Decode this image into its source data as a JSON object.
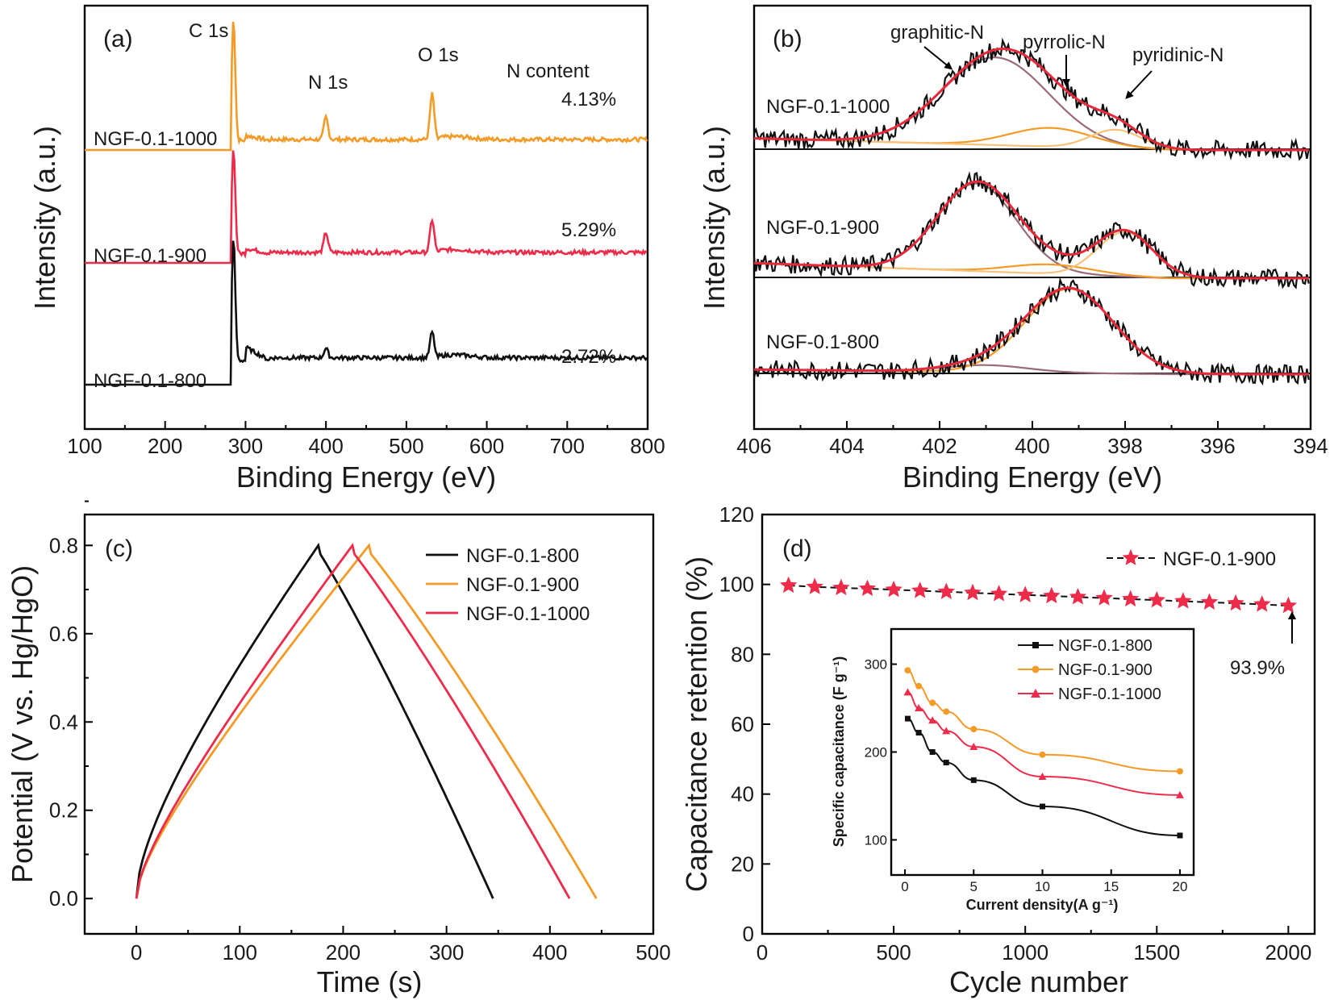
{
  "colors": {
    "black": "#111111",
    "orange": "#f39a27",
    "red": "#ee2c4a",
    "red_fit": "#e8293a",
    "brown_fit": "#9a6a77",
    "light_orange": "#f7c27a"
  },
  "chart_data": [
    {
      "id": "a",
      "panel_label": "(a)",
      "type": "line",
      "xlabel": "Binding Energy (eV)",
      "ylabel": "Intensity (a.u.)",
      "xlim": [
        100,
        800
      ],
      "x_ticks": [
        100,
        200,
        300,
        400,
        500,
        600,
        700,
        800
      ],
      "y_ticks_shown": false,
      "peak_labels": [
        {
          "text": "C 1s",
          "x": 285
        },
        {
          "text": "N 1s",
          "x": 400
        },
        {
          "text": "O 1s",
          "x": 532
        }
      ],
      "column_header": "N content",
      "series": [
        {
          "name": "NGF-0.1-1000",
          "color": "orange",
          "n_content": "4.13%",
          "baseline_before": 0.0,
          "baseline_after": 0.9,
          "peaks": [
            {
              "x": 285,
              "h": 10.4
            },
            {
              "x": 400,
              "h": 1.9
            },
            {
              "x": 532,
              "h": 3.9
            }
          ]
        },
        {
          "name": "NGF-0.1-900",
          "color": "red",
          "n_content": "5.29%",
          "baseline_before": 0.0,
          "baseline_after": 0.9,
          "peaks": [
            {
              "x": 285,
              "h": 9.0
            },
            {
              "x": 400,
              "h": 1.7
            },
            {
              "x": 532,
              "h": 2.8
            }
          ]
        },
        {
          "name": "NGF-0.1-800",
          "color": "black",
          "n_content": "2.72%",
          "baseline_before": 0.0,
          "baseline_after": 2.3,
          "peaks": [
            {
              "x": 285,
              "h": 10.4
            },
            {
              "x": 400,
              "h": 0.8
            },
            {
              "x": 532,
              "h": 2.2
            }
          ]
        }
      ]
    },
    {
      "id": "b",
      "panel_label": "(b)",
      "type": "line",
      "xlabel": "Binding Energy (eV)",
      "ylabel": "Intensity (a.u.)",
      "xlim": [
        406,
        394
      ],
      "x_ticks": [
        406,
        404,
        402,
        400,
        398,
        396,
        394
      ],
      "y_ticks_shown": false,
      "component_labels": [
        "graphitic-N",
        "pyrrolic-N",
        "pyridinic-N"
      ],
      "series": [
        {
          "name": "NGF-0.1-1000",
          "components": [
            {
              "label": "graphitic-N",
              "center": 400.8,
              "height": 7.5,
              "width": 1.15,
              "color": "brown_fit"
            },
            {
              "label": "pyrrolic-N",
              "center": 399.6,
              "height": 1.6,
              "width": 0.9,
              "color": "orange"
            },
            {
              "label": "pyridinic-N",
              "center": 398.2,
              "height": 1.6,
              "width": 0.55,
              "color": "light_orange"
            }
          ]
        },
        {
          "name": "NGF-0.1-900",
          "components": [
            {
              "label": "graphitic-N",
              "center": 401.2,
              "height": 7.5,
              "width": 0.85,
              "color": "brown_fit"
            },
            {
              "label": "pyrrolic-N",
              "center": 399.6,
              "height": 0.8,
              "width": 0.9,
              "color": "orange"
            },
            {
              "label": "pyridinic-N",
              "center": 398.0,
              "height": 3.8,
              "width": 0.6,
              "color": "light_orange"
            }
          ]
        },
        {
          "name": "NGF-0.1-800",
          "components": [
            {
              "label": "graphitic-N",
              "center": 401.0,
              "height": 0.6,
              "width": 0.9,
              "color": "brown_fit"
            },
            {
              "label": "pyrrolic-N",
              "center": 399.2,
              "height": 7.2,
              "width": 0.95,
              "color": "orange"
            }
          ]
        }
      ]
    },
    {
      "id": "c",
      "panel_label": "(c)",
      "type": "line",
      "xlabel": "Time (s)",
      "ylabel": "Potential (V vs. Hg/HgO)",
      "xlim": [
        -50,
        500
      ],
      "ylim": [
        -0.08,
        0.87
      ],
      "x_ticks": [
        0,
        100,
        200,
        300,
        400,
        500
      ],
      "y_ticks": [
        0.0,
        0.2,
        0.4,
        0.6,
        0.8
      ],
      "legend_position": "top-right",
      "series": [
        {
          "name": "NGF-0.1-800",
          "color": "black",
          "t_charge": 176,
          "t_end": 345,
          "v_max": 0.8
        },
        {
          "name": "NGF-0.1-900",
          "color": "orange",
          "t_charge": 225,
          "t_end": 445,
          "v_max": 0.8
        },
        {
          "name": "NGF-0.1-1000",
          "color": "red",
          "t_charge": 209,
          "t_end": 419,
          "v_max": 0.8
        }
      ]
    },
    {
      "id": "d",
      "panel_label": "(d)",
      "type": "line",
      "xlabel": "Cycle number",
      "ylabel": "Capacitance retention (%)",
      "xlim": [
        0,
        2100
      ],
      "ylim": [
        0,
        120
      ],
      "x_ticks": [
        0,
        500,
        1000,
        1500,
        2000
      ],
      "y_ticks": [
        0,
        20,
        40,
        60,
        80,
        100,
        120
      ],
      "legend_position": "top-right",
      "annotation": "93.9%",
      "series": [
        {
          "name": "NGF-0.1-900",
          "color": "red",
          "marker": "star",
          "x": [
            100,
            200,
            300,
            400,
            500,
            600,
            700,
            800,
            900,
            1000,
            1100,
            1200,
            1300,
            1400,
            1500,
            1600,
            1700,
            1800,
            1900,
            2000
          ],
          "y": [
            99.7,
            99.3,
            99.0,
            98.8,
            98.5,
            98.2,
            97.9,
            97.6,
            97.3,
            97.0,
            96.7,
            96.4,
            96.1,
            95.8,
            95.5,
            95.2,
            94.9,
            94.6,
            94.3,
            93.9
          ]
        }
      ]
    },
    {
      "id": "d-inset",
      "type": "line",
      "xlabel": "Current density(A g⁻¹)",
      "ylabel": "Specific capacitance (F g⁻¹)",
      "xlim": [
        -1,
        21
      ],
      "ylim": [
        60,
        340
      ],
      "x_ticks": [
        0,
        5,
        10,
        15,
        20
      ],
      "y_ticks": [
        100,
        200,
        300
      ],
      "legend_position": "top-right",
      "series": [
        {
          "name": "NGF-0.1-800",
          "color": "black",
          "marker": "square",
          "x": [
            0.2,
            1,
            2,
            3,
            5,
            10,
            20
          ],
          "y": [
            238,
            222,
            200,
            188,
            168,
            138,
            105
          ]
        },
        {
          "name": "NGF-0.1-900",
          "color": "orange",
          "marker": "circle",
          "x": [
            0.2,
            1,
            2,
            3,
            5,
            10,
            20
          ],
          "y": [
            293,
            275,
            256,
            246,
            226,
            197,
            178
          ]
        },
        {
          "name": "NGF-0.1-1000",
          "color": "red",
          "marker": "triangle",
          "x": [
            0.2,
            1,
            2,
            3,
            5,
            10,
            20
          ],
          "y": [
            268,
            250,
            236,
            224,
            206,
            172,
            151
          ]
        }
      ]
    }
  ]
}
